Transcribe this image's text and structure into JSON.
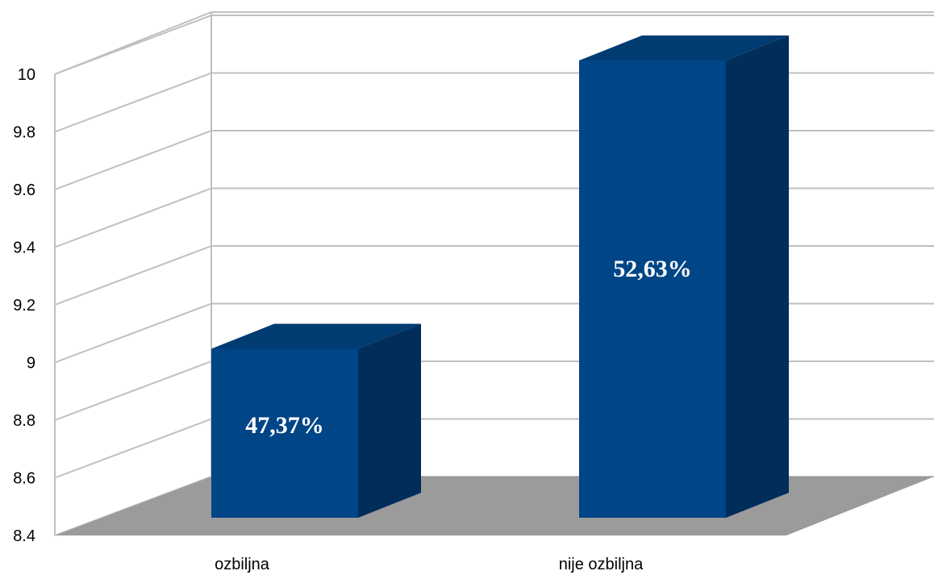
{
  "chart_data": {
    "type": "bar",
    "style": "3d-column",
    "categories": [
      "ozbiljna",
      "nije ozbiljna"
    ],
    "values": [
      9.0,
      10.0
    ],
    "data_labels": [
      "47,37%",
      "52,63%"
    ],
    "ylim": [
      8.4,
      10.0
    ],
    "yticks": [
      "8.4",
      "8.6",
      "8.8",
      "9",
      "9.2",
      "9.4",
      "9.6",
      "9.8",
      "10"
    ],
    "grid": true,
    "legend": "none",
    "colors": {
      "bar_front": "#004586",
      "bar_side": "#002D59",
      "bar_top": "#003B72",
      "floor": "#9B9B9B",
      "grid": "#BFBFBF"
    }
  }
}
